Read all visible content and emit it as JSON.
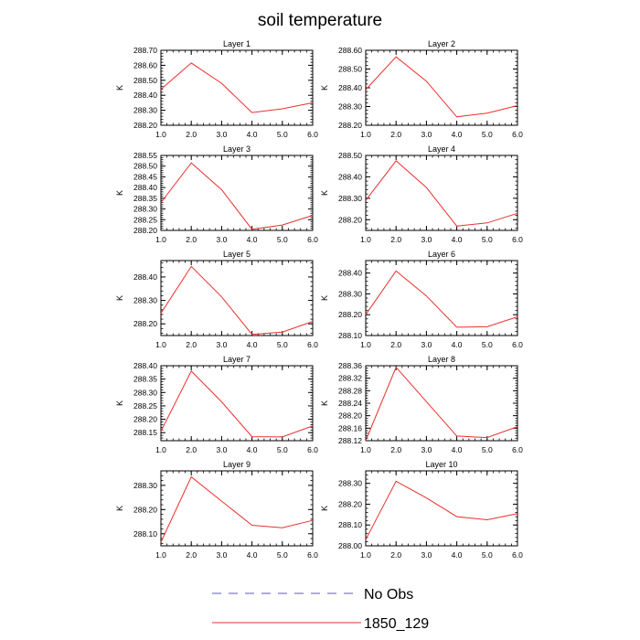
{
  "title": "soil temperature",
  "legend": [
    {
      "label": "No Obs",
      "color": "#5b5bb5",
      "dashed": true
    },
    {
      "label": "1850_129",
      "color": "#e8312d",
      "dashed": false
    }
  ],
  "chart_data": [
    {
      "type": "line",
      "title": "Layer 1",
      "ylabel": "K",
      "x": [
        1,
        2,
        3,
        4,
        5,
        6
      ],
      "values": [
        288.44,
        288.615,
        288.48,
        288.285,
        288.31,
        288.35
      ],
      "xlim": [
        1,
        6
      ],
      "ylim": [
        288.2,
        288.7
      ],
      "yticks": [
        "288.20",
        "288.30",
        "288.40",
        "288.50",
        "288.60",
        "288.70"
      ],
      "xticks": [
        "1.0",
        "2.0",
        "3.0",
        "4.0",
        "5.0",
        "6.0"
      ],
      "series_name": "1850_129"
    },
    {
      "type": "line",
      "title": "Layer 2",
      "ylabel": "K",
      "x": [
        1,
        2,
        3,
        4,
        5,
        6
      ],
      "values": [
        288.39,
        288.565,
        288.435,
        288.245,
        288.265,
        288.305
      ],
      "xlim": [
        1,
        6
      ],
      "ylim": [
        288.2,
        288.6
      ],
      "yticks": [
        "288.20",
        "288.30",
        "288.40",
        "288.50",
        "288.60"
      ],
      "xticks": [
        "1.0",
        "2.0",
        "3.0",
        "4.0",
        "5.0",
        "6.0"
      ],
      "series_name": "1850_129"
    },
    {
      "type": "line",
      "title": "Layer 3",
      "ylabel": "K",
      "x": [
        1,
        2,
        3,
        4,
        5,
        6
      ],
      "values": [
        288.33,
        288.515,
        288.39,
        288.205,
        288.225,
        288.27
      ],
      "xlim": [
        1,
        6
      ],
      "ylim": [
        288.2,
        288.55
      ],
      "yticks": [
        "288.20",
        "288.25",
        "288.30",
        "288.35",
        "288.40",
        "288.45",
        "288.50",
        "288.55"
      ],
      "xticks": [
        "1.0",
        "2.0",
        "3.0",
        "4.0",
        "5.0",
        "6.0"
      ],
      "series_name": "1850_129"
    },
    {
      "type": "line",
      "title": "Layer 4",
      "ylabel": "K",
      "x": [
        1,
        2,
        3,
        4,
        5,
        6
      ],
      "values": [
        288.29,
        288.475,
        288.35,
        288.17,
        288.185,
        288.23
      ],
      "xlim": [
        1,
        6
      ],
      "ylim": [
        288.15,
        288.5
      ],
      "yticks": [
        "288.20",
        "288.30",
        "288.40",
        "288.50"
      ],
      "xticks": [
        "1.0",
        "2.0",
        "3.0",
        "4.0",
        "5.0",
        "6.0"
      ],
      "series_name": "1850_129"
    },
    {
      "type": "line",
      "title": "Layer 5",
      "ylabel": "K",
      "x": [
        1,
        2,
        3,
        4,
        5,
        6
      ],
      "values": [
        288.245,
        288.445,
        288.315,
        288.155,
        288.165,
        288.21
      ],
      "xlim": [
        1,
        6
      ],
      "ylim": [
        288.15,
        288.47
      ],
      "yticks": [
        "288.20",
        "288.30",
        "288.40"
      ],
      "xticks": [
        "1.0",
        "2.0",
        "3.0",
        "4.0",
        "5.0",
        "6.0"
      ],
      "series_name": "1850_129"
    },
    {
      "type": "line",
      "title": "Layer 6",
      "ylabel": "K",
      "x": [
        1,
        2,
        3,
        4,
        5,
        6
      ],
      "values": [
        288.2,
        288.41,
        288.29,
        288.14,
        288.142,
        288.19
      ],
      "xlim": [
        1,
        6
      ],
      "ylim": [
        288.1,
        288.46
      ],
      "yticks": [
        "288.10",
        "288.20",
        "288.30",
        "288.40"
      ],
      "xticks": [
        "1.0",
        "2.0",
        "3.0",
        "4.0",
        "5.0",
        "6.0"
      ],
      "series_name": "1850_129"
    },
    {
      "type": "line",
      "title": "Layer 7",
      "ylabel": "K",
      "x": [
        1,
        2,
        3,
        4,
        5,
        6
      ],
      "values": [
        288.155,
        288.38,
        288.265,
        288.135,
        288.134,
        288.175
      ],
      "xlim": [
        1,
        6
      ],
      "ylim": [
        288.12,
        288.4
      ],
      "yticks": [
        "288.15",
        "288.20",
        "288.25",
        "288.30",
        "288.35",
        "288.40"
      ],
      "xticks": [
        "1.0",
        "2.0",
        "3.0",
        "4.0",
        "5.0",
        "6.0"
      ],
      "series_name": "1850_129"
    },
    {
      "type": "line",
      "title": "Layer 8",
      "ylabel": "K",
      "x": [
        1,
        2,
        3,
        4,
        5,
        6
      ],
      "values": [
        288.12,
        288.355,
        288.245,
        288.135,
        288.13,
        288.165
      ],
      "xlim": [
        1,
        6
      ],
      "ylim": [
        288.12,
        288.36
      ],
      "yticks": [
        "288.12",
        "288.16",
        "288.20",
        "288.24",
        "288.28",
        "288.32",
        "288.36"
      ],
      "xticks": [
        "1.0",
        "2.0",
        "3.0",
        "4.0",
        "5.0",
        "6.0"
      ],
      "series_name": "1850_129"
    },
    {
      "type": "line",
      "title": "Layer 9",
      "ylabel": "K",
      "x": [
        1,
        2,
        3,
        4,
        5,
        6
      ],
      "values": [
        288.065,
        288.335,
        288.235,
        288.135,
        288.125,
        288.155
      ],
      "xlim": [
        1,
        6
      ],
      "ylim": [
        288.05,
        288.36
      ],
      "yticks": [
        "288.10",
        "288.20",
        "288.30"
      ],
      "xticks": [
        "1.0",
        "2.0",
        "3.0",
        "4.0",
        "5.0",
        "6.0"
      ],
      "series_name": "1850_129"
    },
    {
      "type": "line",
      "title": "Layer 10",
      "ylabel": "K",
      "x": [
        1,
        2,
        3,
        4,
        5,
        6
      ],
      "values": [
        288.03,
        288.31,
        288.23,
        288.14,
        288.125,
        288.155
      ],
      "xlim": [
        1,
        6
      ],
      "ylim": [
        288.0,
        288.36
      ],
      "yticks": [
        "288.00",
        "288.10",
        "288.20",
        "288.30"
      ],
      "xticks": [
        "1.0",
        "2.0",
        "3.0",
        "4.0",
        "5.0",
        "6.0"
      ],
      "series_name": "1850_129"
    }
  ]
}
